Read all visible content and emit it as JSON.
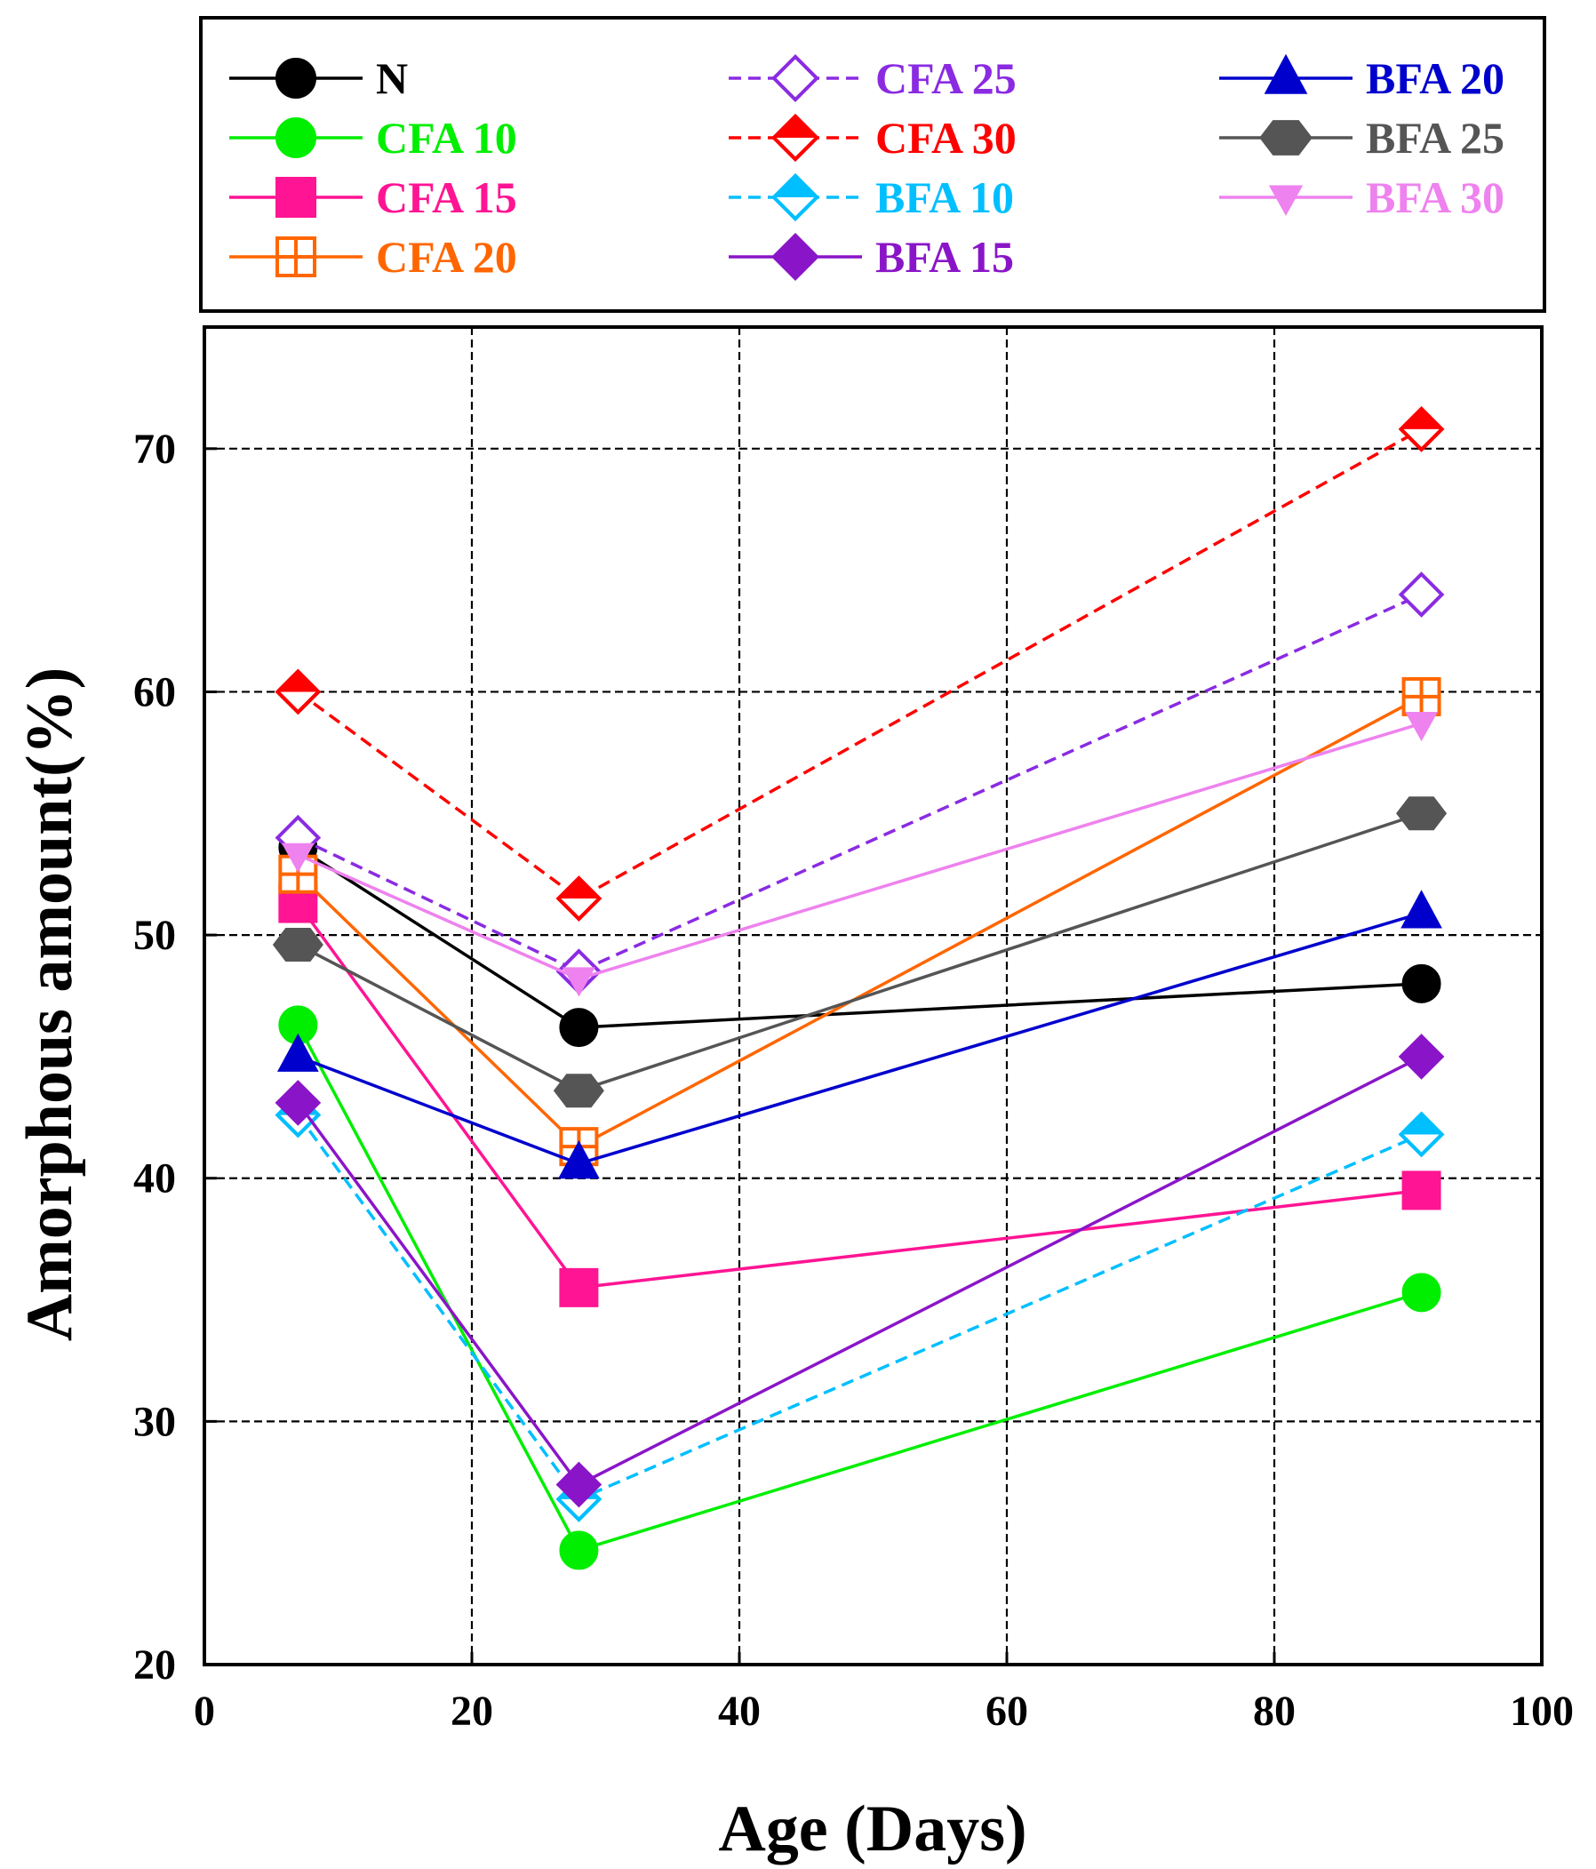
{
  "chart_data": {
    "type": "line",
    "xlabel": "Age (Days)",
    "ylabel": "Amorphous amount(%)",
    "xlim": [
      0,
      100
    ],
    "ylim": [
      20,
      75
    ],
    "xticks": [
      0,
      20,
      40,
      60,
      80,
      100
    ],
    "yticks": [
      20,
      30,
      40,
      50,
      60,
      70
    ],
    "grid": true,
    "legend_position": "top, outside plot",
    "x": [
      7,
      28,
      91
    ],
    "series": [
      {
        "name": "N",
        "values": [
          53.6,
          46.2,
          48.0
        ],
        "color": "#000000",
        "dash": false,
        "marker": "circle",
        "fill": "full"
      },
      {
        "name": "CFA 10",
        "values": [
          46.3,
          24.7,
          35.3
        ],
        "color": "#00ee00",
        "dash": false,
        "marker": "circle",
        "fill": "full"
      },
      {
        "name": "CFA 15",
        "values": [
          51.3,
          35.5,
          39.5
        ],
        "color": "#ff1493",
        "dash": false,
        "marker": "square",
        "fill": "full"
      },
      {
        "name": "CFA 20",
        "values": [
          52.5,
          41.3,
          59.8
        ],
        "color": "#ff6600",
        "dash": false,
        "marker": "square-plus",
        "fill": "open"
      },
      {
        "name": "CFA 25",
        "values": [
          54.0,
          48.5,
          64.0
        ],
        "color": "#8a2be2",
        "dash": true,
        "marker": "diamond",
        "fill": "open"
      },
      {
        "name": "CFA 30",
        "values": [
          60.0,
          51.5,
          70.8
        ],
        "color": "#ff0000",
        "dash": true,
        "marker": "diamond",
        "fill": "half"
      },
      {
        "name": "BFA 10",
        "values": [
          42.6,
          26.8,
          41.8
        ],
        "color": "#00bfff",
        "dash": true,
        "marker": "diamond",
        "fill": "half"
      },
      {
        "name": "BFA 15",
        "values": [
          43.1,
          27.4,
          45.0
        ],
        "color": "#8a15c8",
        "dash": false,
        "marker": "diamond",
        "fill": "full"
      },
      {
        "name": "BFA 20",
        "values": [
          45.0,
          40.6,
          50.9
        ],
        "color": "#0000cd",
        "dash": false,
        "marker": "triangle-up",
        "fill": "full"
      },
      {
        "name": "BFA 25",
        "values": [
          49.6,
          43.6,
          55.0
        ],
        "color": "#555555",
        "dash": false,
        "marker": "hexagon",
        "fill": "full"
      },
      {
        "name": "BFA 30",
        "values": [
          53.3,
          48.2,
          58.7
        ],
        "color": "#ee82ee",
        "dash": false,
        "marker": "triangle-down",
        "fill": "full"
      }
    ]
  }
}
